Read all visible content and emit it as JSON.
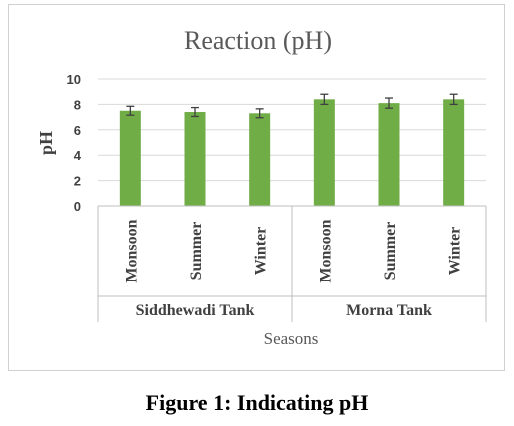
{
  "chart_data": {
    "type": "bar",
    "title": "Reaction (pH)",
    "ylabel": "pH",
    "xlabel": "Seasons",
    "ylim": [
      0,
      10
    ],
    "yticks": [
      0,
      2,
      4,
      6,
      8,
      10
    ],
    "groups": [
      {
        "label": "Siddhewadi Tank",
        "categories": [
          "Monsoon",
          "Summer",
          "Winter"
        ]
      },
      {
        "label": "Morna Tank",
        "categories": [
          "Monsoon",
          "Summer",
          "Winter"
        ]
      }
    ],
    "values": [
      7.5,
      7.4,
      7.3,
      8.4,
      8.1,
      8.4
    ],
    "errors": [
      0.35,
      0.35,
      0.35,
      0.4,
      0.4,
      0.4
    ],
    "bar_color": "#70ad47",
    "grid": true
  },
  "caption": "Figure 1: Indicating pH"
}
